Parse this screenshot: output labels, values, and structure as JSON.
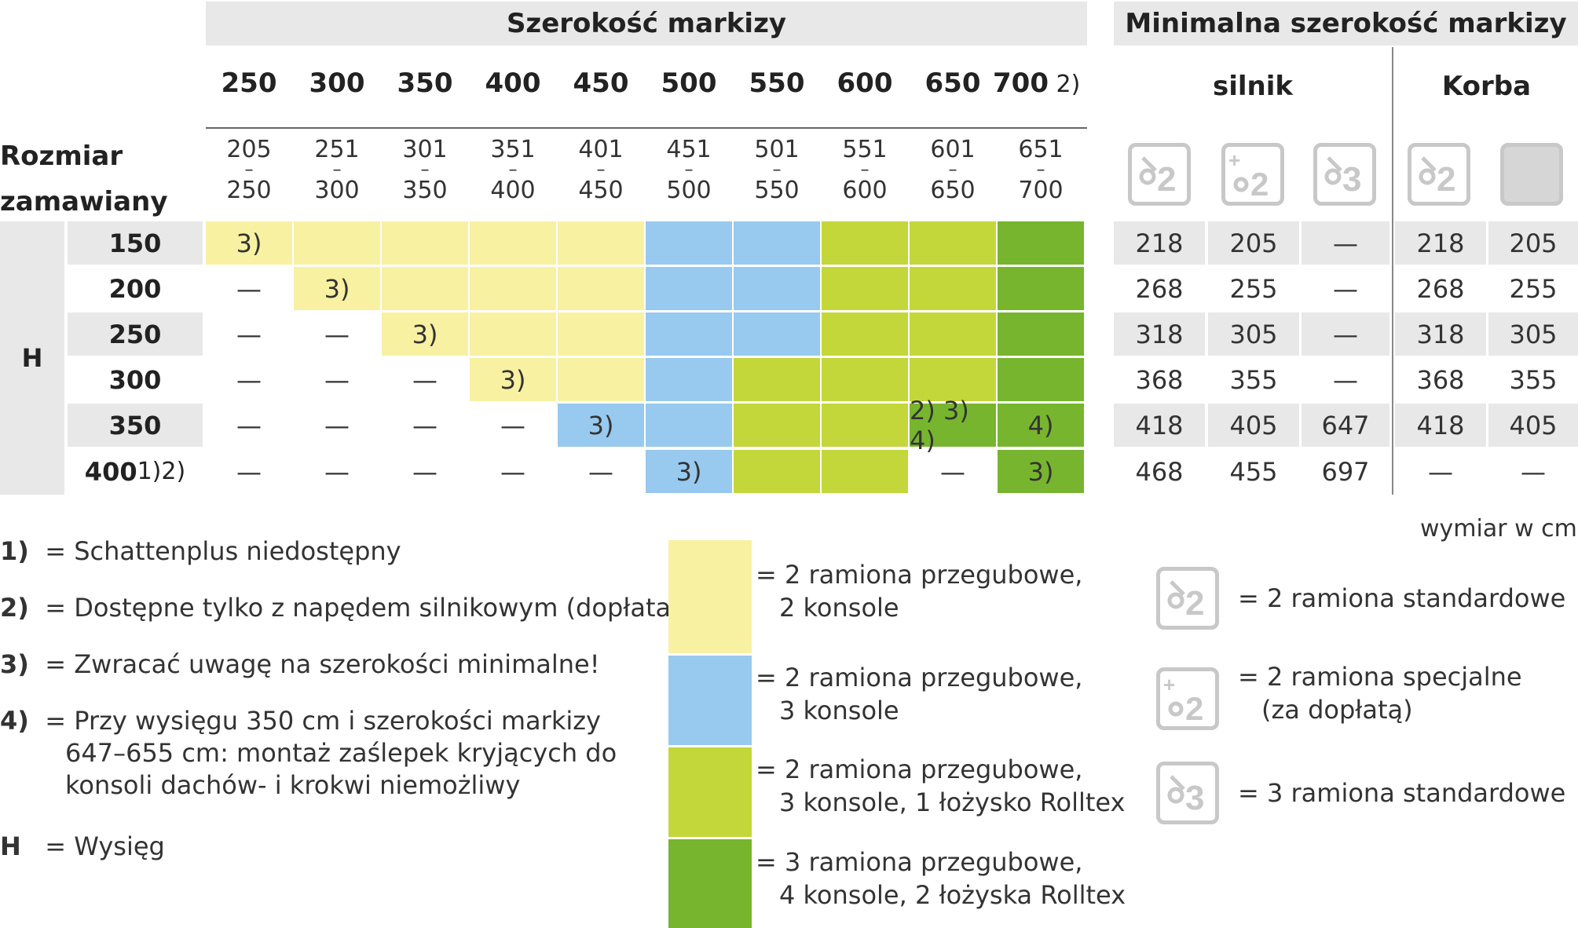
{
  "header": {
    "width_title": "Szerokość markizy",
    "min_title": "Minimalna szerokość markizy",
    "motor": "silnik",
    "crank": "Korba",
    "ordered_size_line1": "Rozmiar",
    "ordered_size_line2": "zamawiany",
    "h_label": "H"
  },
  "widths": [
    "250",
    "300",
    "350",
    "400",
    "450",
    "500",
    "550",
    "600",
    "650",
    "700"
  ],
  "width_700_note": "2)",
  "ranges": [
    {
      "top": "205",
      "bottom": "250"
    },
    {
      "top": "251",
      "bottom": "300"
    },
    {
      "top": "301",
      "bottom": "350"
    },
    {
      "top": "351",
      "bottom": "400"
    },
    {
      "top": "401",
      "bottom": "450"
    },
    {
      "top": "451",
      "bottom": "500"
    },
    {
      "top": "501",
      "bottom": "550"
    },
    {
      "top": "551",
      "bottom": "600"
    },
    {
      "top": "601",
      "bottom": "650"
    },
    {
      "top": "651",
      "bottom": "700"
    }
  ],
  "range_dash": "–",
  "rows": [
    {
      "h": "150",
      "h_note": "",
      "cells": [
        {
          "c": "yellow",
          "t": "3)"
        },
        {
          "c": "yellow",
          "t": ""
        },
        {
          "c": "yellow",
          "t": ""
        },
        {
          "c": "yellow",
          "t": ""
        },
        {
          "c": "yellow",
          "t": ""
        },
        {
          "c": "blue",
          "t": ""
        },
        {
          "c": "blue",
          "t": ""
        },
        {
          "c": "lime",
          "t": ""
        },
        {
          "c": "lime",
          "t": ""
        },
        {
          "c": "green",
          "t": ""
        }
      ],
      "min": [
        "218",
        "205",
        "—",
        "218",
        "205"
      ]
    },
    {
      "h": "200",
      "h_note": "",
      "cells": [
        {
          "c": "none",
          "t": "—"
        },
        {
          "c": "yellow",
          "t": "3)"
        },
        {
          "c": "yellow",
          "t": ""
        },
        {
          "c": "yellow",
          "t": ""
        },
        {
          "c": "yellow",
          "t": ""
        },
        {
          "c": "blue",
          "t": ""
        },
        {
          "c": "blue",
          "t": ""
        },
        {
          "c": "lime",
          "t": ""
        },
        {
          "c": "lime",
          "t": ""
        },
        {
          "c": "green",
          "t": ""
        }
      ],
      "min": [
        "268",
        "255",
        "—",
        "268",
        "255"
      ]
    },
    {
      "h": "250",
      "h_note": "",
      "cells": [
        {
          "c": "none",
          "t": "—"
        },
        {
          "c": "none",
          "t": "—"
        },
        {
          "c": "yellow",
          "t": "3)"
        },
        {
          "c": "yellow",
          "t": ""
        },
        {
          "c": "yellow",
          "t": ""
        },
        {
          "c": "blue",
          "t": ""
        },
        {
          "c": "blue",
          "t": ""
        },
        {
          "c": "lime",
          "t": ""
        },
        {
          "c": "lime",
          "t": ""
        },
        {
          "c": "green",
          "t": ""
        }
      ],
      "min": [
        "318",
        "305",
        "—",
        "318",
        "305"
      ]
    },
    {
      "h": "300",
      "h_note": "",
      "cells": [
        {
          "c": "none",
          "t": "—"
        },
        {
          "c": "none",
          "t": "—"
        },
        {
          "c": "none",
          "t": "—"
        },
        {
          "c": "yellow",
          "t": "3)"
        },
        {
          "c": "yellow",
          "t": ""
        },
        {
          "c": "blue",
          "t": ""
        },
        {
          "c": "lime",
          "t": ""
        },
        {
          "c": "lime",
          "t": ""
        },
        {
          "c": "lime",
          "t": ""
        },
        {
          "c": "green",
          "t": ""
        }
      ],
      "min": [
        "368",
        "355",
        "—",
        "368",
        "355"
      ]
    },
    {
      "h": "350",
      "h_note": "",
      "cells": [
        {
          "c": "none",
          "t": "—"
        },
        {
          "c": "none",
          "t": "—"
        },
        {
          "c": "none",
          "t": "—"
        },
        {
          "c": "none",
          "t": "—"
        },
        {
          "c": "blue",
          "t": "3)"
        },
        {
          "c": "blue",
          "t": ""
        },
        {
          "c": "lime",
          "t": ""
        },
        {
          "c": "lime",
          "t": ""
        },
        {
          "c": "green",
          "t": "2) 3) 4)"
        },
        {
          "c": "green",
          "t": "4)"
        }
      ],
      "min": [
        "418",
        "405",
        "647",
        "418",
        "405"
      ]
    },
    {
      "h": "400",
      "h_note": "1)2)",
      "cells": [
        {
          "c": "none",
          "t": "—"
        },
        {
          "c": "none",
          "t": "—"
        },
        {
          "c": "none",
          "t": "—"
        },
        {
          "c": "none",
          "t": "—"
        },
        {
          "c": "none",
          "t": "—"
        },
        {
          "c": "blue",
          "t": "3)"
        },
        {
          "c": "lime",
          "t": ""
        },
        {
          "c": "lime",
          "t": ""
        },
        {
          "c": "none",
          "t": "—"
        },
        {
          "c": "green",
          "t": "3)"
        }
      ],
      "min": [
        "468",
        "455",
        "697",
        "—",
        "—"
      ]
    }
  ],
  "notes": [
    {
      "key": "1)",
      "text": "= Schattenplus niedostępny"
    },
    {
      "key": "2)",
      "text": "= Dostępne tylko z napędem silnikowym (dopłata)"
    },
    {
      "key": "3)",
      "text": "= Zwracać uwagę na szerokości minimalne!"
    },
    {
      "key": "4)",
      "text": "= Przy wysięgu 350 cm i szerokości markizy",
      "line2": "647–655 cm: montaż zaślepek kryjących do",
      "line3": "konsoli dachów- i krokwi niemożliwy"
    },
    {
      "key": "H",
      "text": "= Wysięg"
    }
  ],
  "color_legend": [
    {
      "color": "#f8f1a2",
      "line1": "= 2 ramiona przegubowe,",
      "line2": "2 konsole"
    },
    {
      "color": "#98c9ee",
      "line1": "= 2 ramiona przegubowe,",
      "line2": "3 konsole"
    },
    {
      "color": "#c4d73a",
      "line1": "= 2 ramiona przegubowe,",
      "line2": "3 konsole, 1 łożysko Rolltex"
    },
    {
      "color": "#77b52e",
      "line1": "= 3 ramiona przegubowe,",
      "line2": "4 konsole, 2 łożyska Rolltex"
    }
  ],
  "unit_note": "wymiar w cm",
  "icon_legend": [
    {
      "icon": "arm-2-icon",
      "line1": "= 2 ramiona standardowe",
      "line2": ""
    },
    {
      "icon": "arm-2-special-icon",
      "line1": "= 2 ramiona specjalne",
      "line2": "(za dopłatą)"
    },
    {
      "icon": "arm-3-icon",
      "line1": "= 3 ramiona standardowe",
      "line2": ""
    }
  ],
  "colors": {
    "yellow": "#f8f1a2",
    "blue": "#98c9ee",
    "lime": "#c4d73a",
    "green": "#77b52e",
    "gray": "#e8e8e8"
  }
}
